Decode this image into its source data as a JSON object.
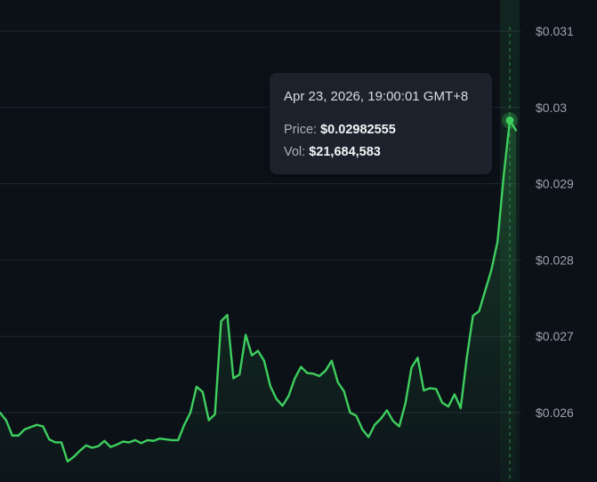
{
  "chart_data": {
    "type": "area",
    "y_ticks": [
      {
        "value": 0.031,
        "label": "$0.031"
      },
      {
        "value": 0.03,
        "label": "$0.03"
      },
      {
        "value": 0.029,
        "label": "$0.029"
      },
      {
        "value": 0.028,
        "label": "$0.028"
      },
      {
        "value": 0.027,
        "label": "$0.027"
      },
      {
        "value": 0.026,
        "label": "$0.026"
      }
    ],
    "ylim": [
      0.02546,
      0.03106
    ],
    "grid": true,
    "colors": {
      "line": "#3ecf5e",
      "background": "#0c1118",
      "grid": "#1e262f",
      "tooltip_bg": "#1b222b"
    },
    "values": [
      0.026,
      0.0259,
      0.0257,
      0.0257,
      0.02578,
      0.02581,
      0.02584,
      0.02582,
      0.02565,
      0.02561,
      0.02561,
      0.02536,
      0.02542,
      0.0255,
      0.02557,
      0.02554,
      0.02556,
      0.02563,
      0.02555,
      0.02558,
      0.02562,
      0.02561,
      0.02564,
      0.0256,
      0.02564,
      0.02563,
      0.02566,
      0.02565,
      0.02564,
      0.02564,
      0.02584,
      0.026,
      0.02634,
      0.02627,
      0.0259,
      0.02598,
      0.0272,
      0.02728,
      0.02645,
      0.0265,
      0.02702,
      0.02675,
      0.02681,
      0.02668,
      0.02635,
      0.02618,
      0.02609,
      0.02622,
      0.02645,
      0.0266,
      0.02652,
      0.02651,
      0.02648,
      0.02655,
      0.02668,
      0.0264,
      0.02628,
      0.026,
      0.02596,
      0.02578,
      0.02568,
      0.02584,
      0.02592,
      0.02603,
      0.02589,
      0.02582,
      0.02612,
      0.02659,
      0.02672,
      0.02629,
      0.02632,
      0.02631,
      0.02613,
      0.02608,
      0.02624,
      0.02606,
      0.02672,
      0.02727,
      0.02733,
      0.0276,
      0.02787,
      0.02824,
      0.0291,
      0.02983,
      0.0297
    ],
    "highlight_index": 83
  },
  "tooltip": {
    "date": "Apr 23, 2026, 19:00:01 GMT+8",
    "price_label": "Price:",
    "price_value": "$0.02982555",
    "vol_label": "Vol:",
    "vol_value": "$21,684,583"
  }
}
